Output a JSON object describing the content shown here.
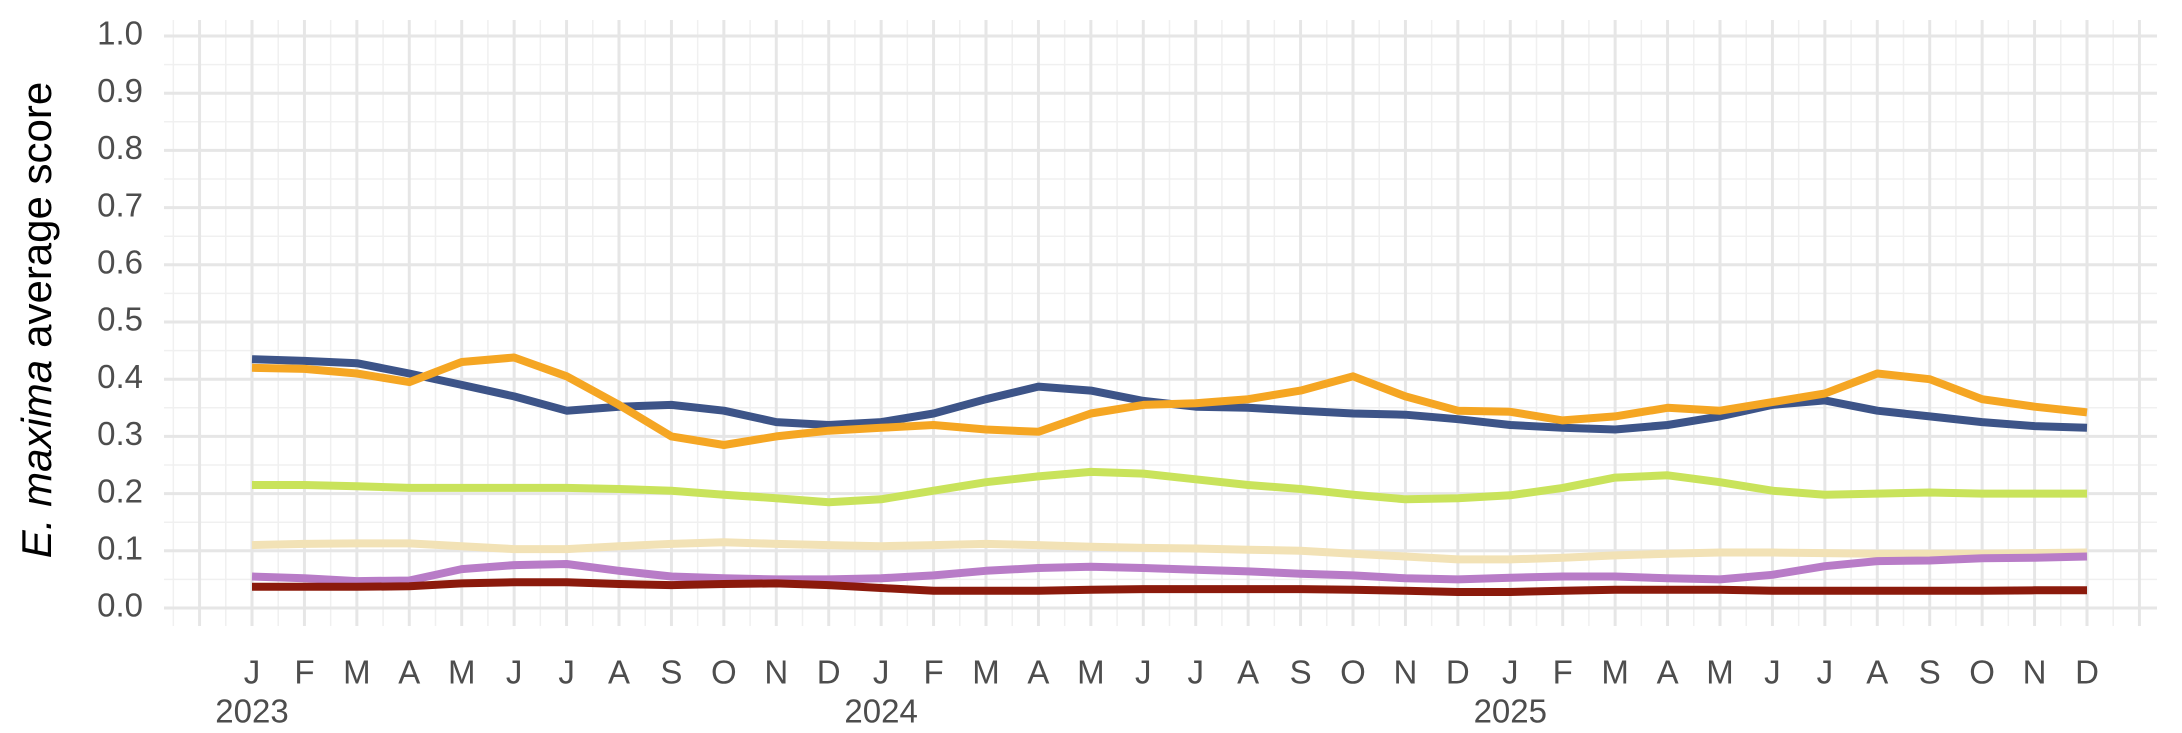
{
  "chart_data": {
    "type": "line",
    "ylabel_italic": "E. maxima",
    "ylabel": "average score",
    "categories": [
      "J",
      "F",
      "M",
      "A",
      "M",
      "J",
      "J",
      "A",
      "S",
      "O",
      "N",
      "D",
      "J",
      "F",
      "M",
      "A",
      "M",
      "J",
      "J",
      "A",
      "S",
      "O",
      "N",
      "D",
      "J",
      "F",
      "M",
      "A",
      "M",
      "J",
      "J",
      "A",
      "S",
      "O",
      "N",
      "D"
    ],
    "years": [
      "2023",
      "2024",
      "2025"
    ],
    "ylim": [
      0,
      1
    ],
    "yticks": [
      {
        "value": 0,
        "label": "0.0"
      },
      0.1,
      0.2,
      0.3,
      0.4,
      0.5,
      0.6,
      0.7,
      0.8,
      0.9,
      {
        "value": 1,
        "label": "1.0"
      }
    ],
    "grid": true,
    "series": [
      {
        "color": "#3d5488",
        "values": [
          0.435,
          0.432,
          0.428,
          0.41,
          0.39,
          0.37,
          0.345,
          0.352,
          0.355,
          0.345,
          0.325,
          0.32,
          0.325,
          0.34,
          0.365,
          0.387,
          0.38,
          0.362,
          0.352,
          0.35,
          0.345,
          0.34,
          0.338,
          0.33,
          0.32,
          0.315,
          0.312,
          0.32,
          0.335,
          0.355,
          0.363,
          0.345,
          0.335,
          0.325,
          0.318,
          0.315
        ]
      },
      {
        "color": "#f5a623",
        "values": [
          0.42,
          0.418,
          0.41,
          0.395,
          0.43,
          0.438,
          0.405,
          0.355,
          0.3,
          0.285,
          0.3,
          0.31,
          0.315,
          0.32,
          0.312,
          0.308,
          0.34,
          0.355,
          0.358,
          0.365,
          0.38,
          0.405,
          0.37,
          0.345,
          0.343,
          0.328,
          0.335,
          0.35,
          0.345,
          0.36,
          0.375,
          0.41,
          0.4,
          0.365,
          0.352,
          0.342
        ]
      },
      {
        "color": "#c9e35b",
        "values": [
          0.215,
          0.215,
          0.213,
          0.21,
          0.21,
          0.21,
          0.21,
          0.208,
          0.205,
          0.198,
          0.192,
          0.185,
          0.19,
          0.205,
          0.22,
          0.23,
          0.238,
          0.235,
          0.225,
          0.215,
          0.208,
          0.198,
          0.19,
          0.192,
          0.197,
          0.21,
          0.228,
          0.232,
          0.22,
          0.205,
          0.198,
          0.2,
          0.202,
          0.2,
          0.2,
          0.2
        ]
      },
      {
        "color": "#f2e2b6",
        "values": [
          0.11,
          0.112,
          0.113,
          0.113,
          0.108,
          0.103,
          0.103,
          0.108,
          0.112,
          0.115,
          0.112,
          0.11,
          0.108,
          0.11,
          0.112,
          0.11,
          0.107,
          0.105,
          0.104,
          0.102,
          0.1,
          0.095,
          0.09,
          0.085,
          0.085,
          0.088,
          0.092,
          0.095,
          0.097,
          0.097,
          0.096,
          0.095,
          0.095,
          0.095,
          0.096,
          0.097
        ]
      },
      {
        "color": "#b87cc7",
        "values": [
          0.055,
          0.052,
          0.047,
          0.048,
          0.068,
          0.075,
          0.077,
          0.065,
          0.055,
          0.052,
          0.05,
          0.05,
          0.052,
          0.057,
          0.065,
          0.07,
          0.072,
          0.07,
          0.067,
          0.064,
          0.06,
          0.057,
          0.052,
          0.05,
          0.053,
          0.055,
          0.055,
          0.052,
          0.05,
          0.058,
          0.073,
          0.082,
          0.083,
          0.087,
          0.088,
          0.09
        ]
      },
      {
        "color": "#8b1a0c",
        "values": [
          0.037,
          0.037,
          0.037,
          0.038,
          0.043,
          0.045,
          0.045,
          0.042,
          0.04,
          0.042,
          0.043,
          0.04,
          0.035,
          0.03,
          0.03,
          0.03,
          0.032,
          0.033,
          0.033,
          0.033,
          0.033,
          0.032,
          0.03,
          0.028,
          0.028,
          0.03,
          0.032,
          0.032,
          0.032,
          0.03,
          0.03,
          0.03,
          0.03,
          0.03,
          0.031,
          0.031
        ]
      }
    ]
  }
}
